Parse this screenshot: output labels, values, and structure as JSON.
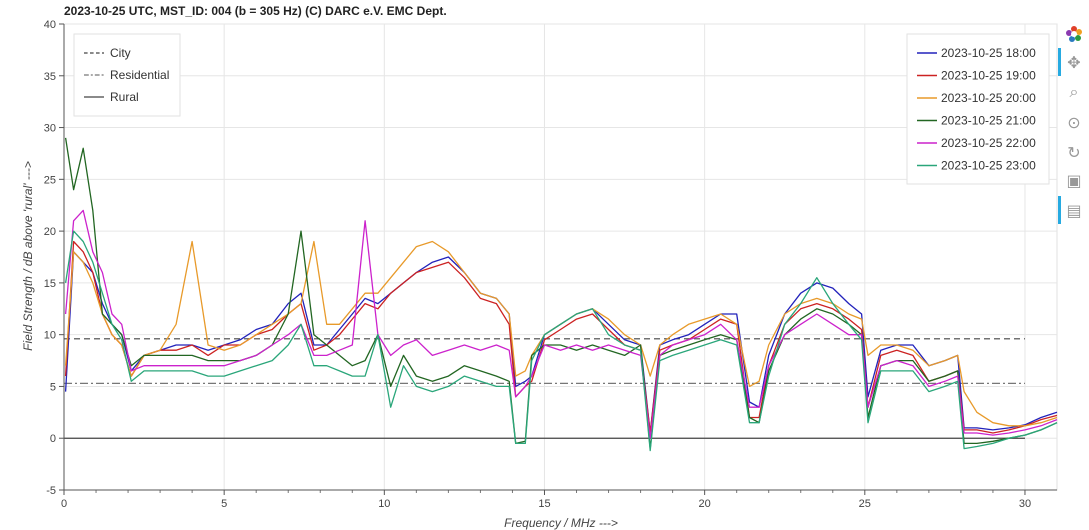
{
  "chart_data": {
    "type": "line",
    "title": "2023-10-25  UTC,  MST_ID:  004   (b = 305 Hz)   (C) DARC e.V. EMC Dept.",
    "xlabel": "Frequency / MHz --->",
    "ylabel": "Field Strength / dB above 'rural' --->",
    "xlim": [
      0,
      31
    ],
    "ylim": [
      -5,
      40
    ],
    "xticks": [
      0,
      5,
      10,
      15,
      20,
      25,
      30
    ],
    "yticks": [
      -5,
      0,
      5,
      10,
      15,
      20,
      25,
      30,
      35,
      40
    ],
    "grid": true,
    "reference_lines": [
      {
        "name": "City",
        "y": 9.6,
        "dash": "6,4",
        "color": "#444444"
      },
      {
        "name": "Residential",
        "y": 5.3,
        "dash": "8,3,2,3",
        "color": "#777777"
      },
      {
        "name": "Rural",
        "y": 0,
        "dash": "",
        "color": "#444444"
      }
    ],
    "reference_legend_position": "top-left",
    "series_legend_position": "top-right",
    "x": [
      0.05,
      0.3,
      0.6,
      0.9,
      1.2,
      1.5,
      1.8,
      2.1,
      2.5,
      3.0,
      3.5,
      4.0,
      4.5,
      5.0,
      5.5,
      6.0,
      6.5,
      7.0,
      7.4,
      7.8,
      8.2,
      8.6,
      9.0,
      9.4,
      9.8,
      10.2,
      10.6,
      11.0,
      11.5,
      12.0,
      12.5,
      13.0,
      13.5,
      13.9,
      14.1,
      14.4,
      14.6,
      15.0,
      15.5,
      16.0,
      16.5,
      17.0,
      17.5,
      18.0,
      18.3,
      18.6,
      19.0,
      19.5,
      20.0,
      20.5,
      21.0,
      21.4,
      21.7,
      22.0,
      22.5,
      23.0,
      23.5,
      24.0,
      24.5,
      24.9,
      25.1,
      25.5,
      26.0,
      26.5,
      27.0,
      27.5,
      27.9,
      28.1,
      28.5,
      29.0,
      29.5,
      30.0,
      30.5,
      31.0
    ],
    "series": [
      {
        "name": "2023-10-25 18:00",
        "color": "#2222bb",
        "values": [
          4.5,
          18,
          17,
          16,
          13,
          11,
          10,
          6.5,
          8,
          8.5,
          9,
          9,
          8.5,
          9,
          9.5,
          10.5,
          11,
          13,
          14,
          9,
          9,
          10.5,
          12,
          13.5,
          13,
          14,
          15,
          16,
          17,
          17.5,
          16,
          14,
          13.5,
          12,
          5,
          5.5,
          6,
          10,
          11,
          12,
          12.5,
          11,
          9.5,
          9,
          0.5,
          9,
          9.5,
          10,
          11,
          12,
          12,
          3.5,
          3,
          8,
          12,
          14,
          15,
          14.5,
          13,
          12,
          4,
          8.5,
          9,
          9,
          7,
          7.5,
          8,
          1,
          1,
          0.8,
          1,
          1.3,
          2,
          2.5
        ]
      },
      {
        "name": "2023-10-25 19:00",
        "color": "#cc2222",
        "values": [
          6,
          19,
          18,
          16,
          12,
          10,
          9,
          6,
          8,
          8.5,
          8.5,
          9,
          8,
          9,
          9,
          10,
          10.5,
          12,
          13,
          8.5,
          9,
          10,
          11.5,
          13,
          12.5,
          14,
          15,
          16,
          16.5,
          17,
          15.5,
          13.5,
          13,
          11,
          4,
          5,
          5.5,
          9.5,
          10.5,
          11.5,
          12,
          10.5,
          9,
          8.5,
          0.5,
          8.5,
          9,
          9.5,
          10.5,
          11.5,
          11,
          2,
          2,
          7,
          11,
          12.5,
          13,
          12.5,
          11.5,
          10.5,
          3,
          8,
          8.5,
          8,
          5.5,
          6,
          6.5,
          0.8,
          0.8,
          0.5,
          0.8,
          1.2,
          1.8,
          2.2
        ]
      },
      {
        "name": "2023-10-25 20:00",
        "color": "#e89a2a",
        "values": [
          7,
          18,
          17,
          15,
          12,
          10,
          9,
          6,
          8,
          8.5,
          11,
          19,
          9,
          8.5,
          9,
          10,
          11,
          12,
          13,
          19,
          11,
          11,
          12.5,
          14,
          14,
          15.5,
          17,
          18.5,
          19,
          18,
          16,
          14,
          13.5,
          12,
          6,
          6.5,
          8,
          10,
          11,
          12,
          12.5,
          11.5,
          10,
          9,
          6,
          9,
          10,
          11,
          11.5,
          12,
          11,
          5,
          5.5,
          9,
          12,
          13,
          13.5,
          13,
          12,
          11.5,
          8,
          9,
          9,
          8.5,
          7,
          7.5,
          8,
          4.5,
          2.5,
          1.5,
          1.2,
          1.2,
          1.5,
          2
        ]
      },
      {
        "name": "2023-10-25 21:00",
        "color": "#226622",
        "values": [
          29,
          24,
          28,
          22,
          12,
          11,
          10,
          7,
          8,
          8,
          8,
          8,
          7.5,
          7.5,
          7.5,
          8,
          9,
          12,
          20,
          10,
          9,
          8,
          7,
          7.5,
          10,
          5,
          8,
          6,
          5.5,
          6,
          7,
          6.5,
          6,
          5.5,
          -0.5,
          -0.3,
          8,
          9,
          9,
          8.5,
          9,
          8.5,
          8,
          9,
          -1,
          8,
          8.5,
          9,
          9.5,
          10,
          9.5,
          2,
          1.5,
          6.5,
          10,
          11.5,
          12.5,
          12,
          11,
          10,
          2,
          7,
          7.5,
          7.5,
          5.5,
          6,
          6.5,
          -0.5,
          -0.5,
          -0.3,
          0,
          0.3,
          0.8,
          1.5
        ]
      },
      {
        "name": "2023-10-25 22:00",
        "color": "#cc22cc",
        "values": [
          12,
          21,
          22,
          18,
          16,
          12,
          11,
          6.5,
          7,
          7,
          7,
          7,
          7,
          7,
          7.5,
          8,
          9,
          10,
          11,
          8,
          8,
          8.5,
          9,
          21,
          10,
          8,
          9,
          9.5,
          8,
          8.5,
          9,
          8.5,
          9,
          8.5,
          4,
          5,
          6,
          9,
          8.5,
          9,
          8.5,
          9,
          8.5,
          8,
          0,
          8,
          9,
          9.5,
          10,
          11,
          9.5,
          3,
          3,
          7,
          10,
          11,
          12,
          11,
          10,
          10,
          3,
          7,
          7.5,
          7,
          5,
          5.5,
          6,
          0.5,
          0.5,
          0.3,
          0.5,
          0.8,
          1.2,
          1.8
        ]
      },
      {
        "name": "2023-10-25 23:00",
        "color": "#2aa67a",
        "values": [
          15,
          20,
          19,
          17,
          14,
          11,
          9.5,
          5.5,
          6.5,
          6.5,
          6.5,
          6.5,
          6,
          6,
          6.5,
          7,
          7.5,
          9,
          11,
          7,
          7,
          6.5,
          6,
          6,
          10,
          3,
          7,
          5,
          4.5,
          5,
          6,
          5.5,
          5,
          5,
          -0.5,
          -0.5,
          7.5,
          10,
          11,
          12,
          12.5,
          10,
          9,
          8.5,
          -1.2,
          7.5,
          8,
          8.5,
          9,
          9.5,
          9,
          1.5,
          1.5,
          6,
          11,
          13,
          15.5,
          13,
          11,
          9.5,
          1.5,
          6.5,
          6.5,
          6.5,
          4.5,
          5,
          5.5,
          -1,
          -0.8,
          -0.5,
          0,
          0.3,
          0.8,
          1.5
        ]
      }
    ]
  },
  "toolbar": {
    "logo_icon": "bokeh-logo-icon",
    "pan_icon": "pan-icon",
    "box_zoom_icon": "box-zoom-icon",
    "wheel_zoom_icon": "wheel-zoom-icon",
    "reset_icon": "reset-icon",
    "save_icon": "save-icon",
    "hover_icon": "hover-icon",
    "active_color": "#26aae1"
  }
}
